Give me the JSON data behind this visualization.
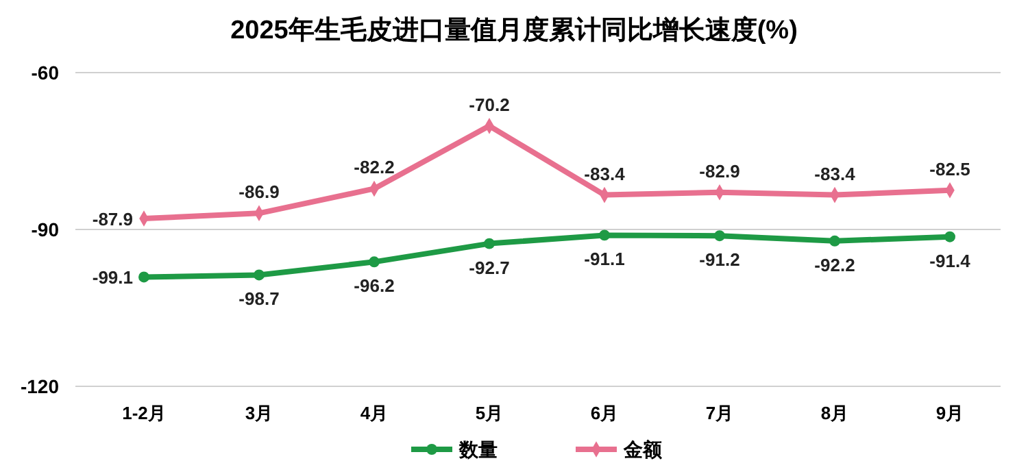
{
  "chart_data": {
    "type": "line",
    "title": "2025年生毛皮进口量值月度累计同比增长速度(%)",
    "categories": [
      "1-2月",
      "3月",
      "4月",
      "5月",
      "6月",
      "7月",
      "8月",
      "9月"
    ],
    "series": [
      {
        "name": "数量",
        "color": "#1e9a45",
        "marker": "circle",
        "values": [
          -99.1,
          -98.7,
          -96.2,
          -92.7,
          -91.1,
          -91.2,
          -92.2,
          -91.4
        ]
      },
      {
        "name": "金额",
        "color": "#e8708f",
        "marker": "diamond",
        "values": [
          -87.9,
          -86.9,
          -82.2,
          -70.2,
          -83.4,
          -82.9,
          -83.4,
          -82.5
        ]
      }
    ],
    "ylim": [
      -120,
      -60
    ],
    "yticks": [
      -60,
      -90,
      -120
    ],
    "grid": "y",
    "legend": "bottom",
    "data_labels": true
  }
}
